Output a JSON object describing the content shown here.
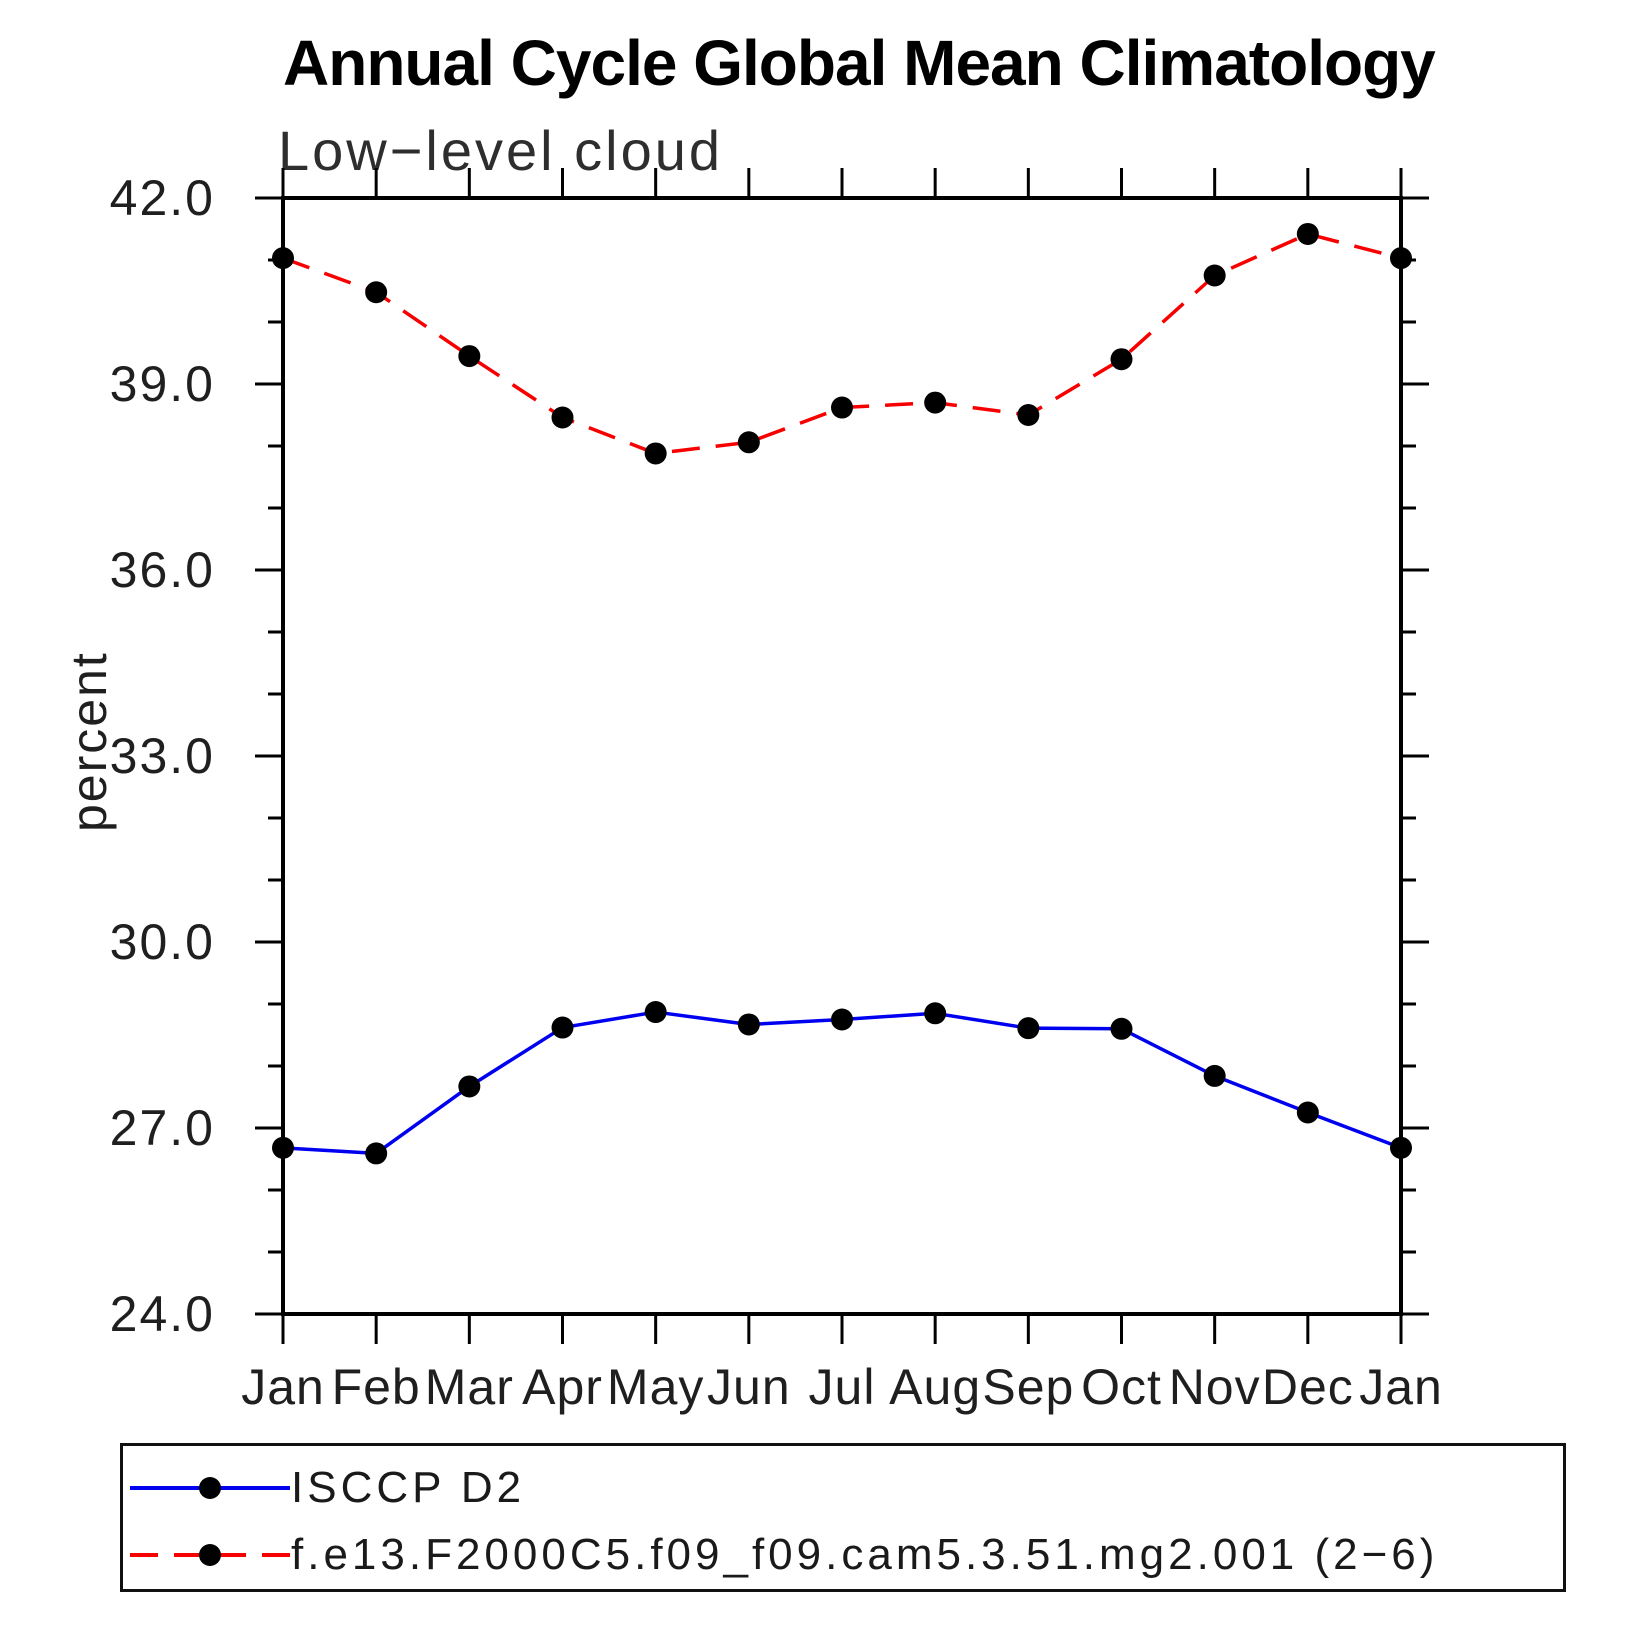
{
  "header": {
    "title": "Annual Cycle Global Mean Climatology",
    "subtitle": "Low−level cloud"
  },
  "chart_data": {
    "type": "line",
    "title": "Annual Cycle Global Mean Climatology",
    "subtitle": "Low−level cloud",
    "xlabel": "",
    "ylabel": "percent",
    "categories": [
      "Jan",
      "Feb",
      "Mar",
      "Apr",
      "May",
      "Jun",
      "Jul",
      "Aug",
      "Sep",
      "Oct",
      "Nov",
      "Dec",
      "Jan"
    ],
    "ylim": [
      24.0,
      42.0
    ],
    "y_major_ticks": [
      24.0,
      27.0,
      30.0,
      33.0,
      36.0,
      39.0,
      42.0
    ],
    "y_tick_labels": [
      "24.0",
      "27.0",
      "30.0",
      "33.0",
      "36.0",
      "39.0",
      "42.0"
    ],
    "y_minor_step": 1.0,
    "grid": false,
    "legend_position": "bottom",
    "series": [
      {
        "name": "ISCCP D2",
        "color": "#0000f0",
        "line_style": "solid",
        "marker": "filled-circle",
        "marker_color": "#000000",
        "values": [
          26.68,
          26.59,
          27.67,
          28.62,
          28.87,
          28.67,
          28.75,
          28.85,
          28.61,
          28.6,
          27.84,
          27.25,
          26.68
        ]
      },
      {
        "name": "f.e13.F2000C5.f09_f09.cam5.3.51.mg2.001 (2−6)",
        "color": "#f80000",
        "line_style": "dashed",
        "marker": "filled-circle",
        "marker_color": "#000000",
        "values": [
          41.03,
          40.48,
          39.45,
          38.46,
          37.88,
          38.06,
          38.62,
          38.7,
          38.5,
          39.4,
          40.75,
          41.42,
          41.03
        ]
      }
    ]
  }
}
